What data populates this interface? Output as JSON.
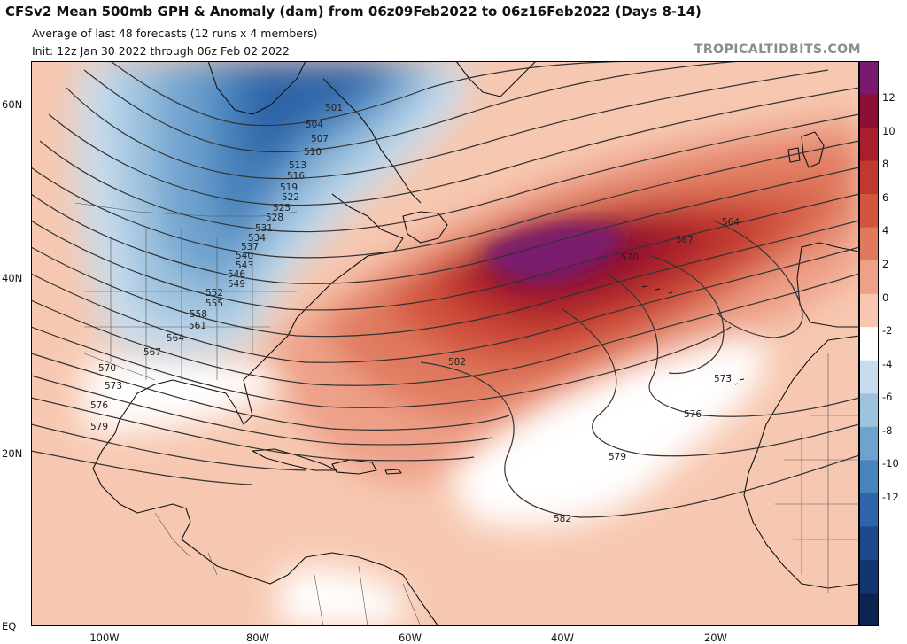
{
  "header": {
    "title": "CFSv2 Mean 500mb GPH & Anomaly (dam) from 06z09Feb2022 to 06z16Feb2022 (Days 8-14)",
    "subtitle1": "Average of last 48 forecasts (12 runs x 4 members)",
    "subtitle2": "Init: 12z Jan 30 2022 through 06z Feb 02 2022",
    "watermark": "TROPICALTIDBITS.COM"
  },
  "axes": {
    "lat_labels": [
      "60N",
      "40N",
      "20N",
      "EQ"
    ],
    "lon_labels": [
      "100W",
      "80W",
      "60W",
      "40W",
      "20W"
    ]
  },
  "colorbar": {
    "labels": [
      "12",
      "10",
      "8",
      "6",
      "4",
      "2",
      "0",
      "-2",
      "-4",
      "-6",
      "-8",
      "-10",
      "-12"
    ],
    "colors": [
      "#7a1a6e",
      "#8b1033",
      "#a81f2c",
      "#c0392f",
      "#d2553f",
      "#e07a5e",
      "#eea088",
      "#f8c7b0",
      "#ffffff",
      "#c8dced",
      "#9ec3df",
      "#6fa3cf",
      "#4a84bd",
      "#2e65a8",
      "#1c4a8c",
      "#123670",
      "#0b2450"
    ]
  },
  "contours": {
    "height_labels": [
      "501",
      "504",
      "507",
      "510",
      "513",
      "516",
      "519",
      "522",
      "525",
      "528",
      "531",
      "534",
      "537",
      "540",
      "543",
      "546",
      "549",
      "552",
      "555",
      "558",
      "561",
      "564",
      "567",
      "570",
      "573",
      "576",
      "579",
      "582",
      "564",
      "567",
      "570",
      "573",
      "576",
      "579",
      "582"
    ]
  }
}
